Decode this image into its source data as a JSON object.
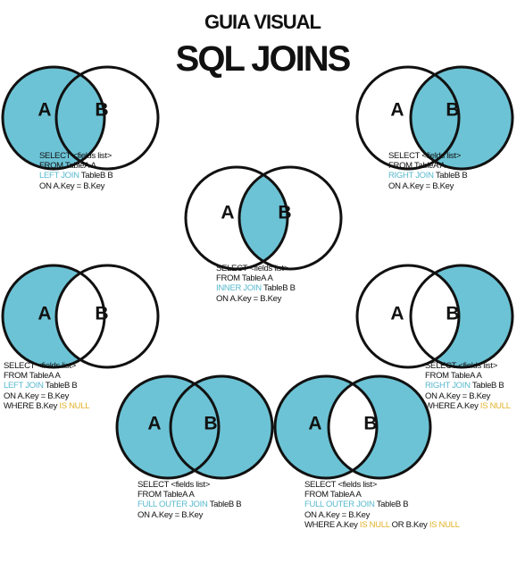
{
  "header": {
    "subtitle": "GUIA VISUAL",
    "title": "SQL JOINS"
  },
  "colors": {
    "fill": "#6cc3d5",
    "outline": "#111111",
    "keyword": "#59b9cd",
    "null_keyword": "#e3b229"
  },
  "set_labels": {
    "a": "A",
    "b": "B"
  },
  "joins": {
    "left_join": {
      "highlight": "A",
      "line1": "SELECT <fields list>",
      "line2": "FROM TableA A",
      "kw": "LEFT JOIN",
      "tableb": " TableB B",
      "line4": "ON A.Key = B.Key"
    },
    "right_join": {
      "highlight": "B",
      "line1": "SELECT <fields list>",
      "line2": "FROM TableA A",
      "kw": "RIGHT JOIN",
      "tableb": " TableB B",
      "line4": "ON A.Key = B.Key"
    },
    "inner_join": {
      "highlight": "A∩B",
      "line1": "SELECT <fields list>",
      "line2": "FROM TableA A",
      "kw": "INNER JOIN",
      "tableb": " TableB B",
      "line4": "ON A.Key = B.Key"
    },
    "left_only": {
      "highlight": "A−B",
      "line1": "SELECT <fields list>",
      "line2": "FROM TableA A",
      "kw": "LEFT JOIN",
      "tableb": " TableB B",
      "line4": "ON A.Key = B.Key",
      "where_pre": "WHERE B.Key ",
      "null_kw": "IS NULL"
    },
    "right_only": {
      "highlight": "B−A",
      "line1": "SELECT <fields list>",
      "line2": "FROM TableA A",
      "kw": "RIGHT JOIN",
      "tableb": " TableB B",
      "line4": "ON A.Key = B.Key",
      "where_pre": "WHERE A.Key ",
      "null_kw": "IS NULL"
    },
    "full_outer": {
      "highlight": "A∪B",
      "line1": "SELECT <fields list>",
      "line2": "FROM TableA A",
      "kw": "FULL OUTER JOIN",
      "tableb": " TableB B",
      "line4": "ON A.Key = B.Key"
    },
    "full_outer_exclusive": {
      "highlight": "A∆B",
      "line1": "SELECT <fields list>",
      "line2": "FROM TableA A",
      "kw": "FULL OUTER JOIN",
      "tableb": " TableB B",
      "line4": "ON A.Key = B.Key",
      "where_pre": "WHERE A.Key ",
      "null_kw": "IS NULL",
      "or_text": " OR B.Key ",
      "null_kw2": "IS NULL"
    }
  }
}
